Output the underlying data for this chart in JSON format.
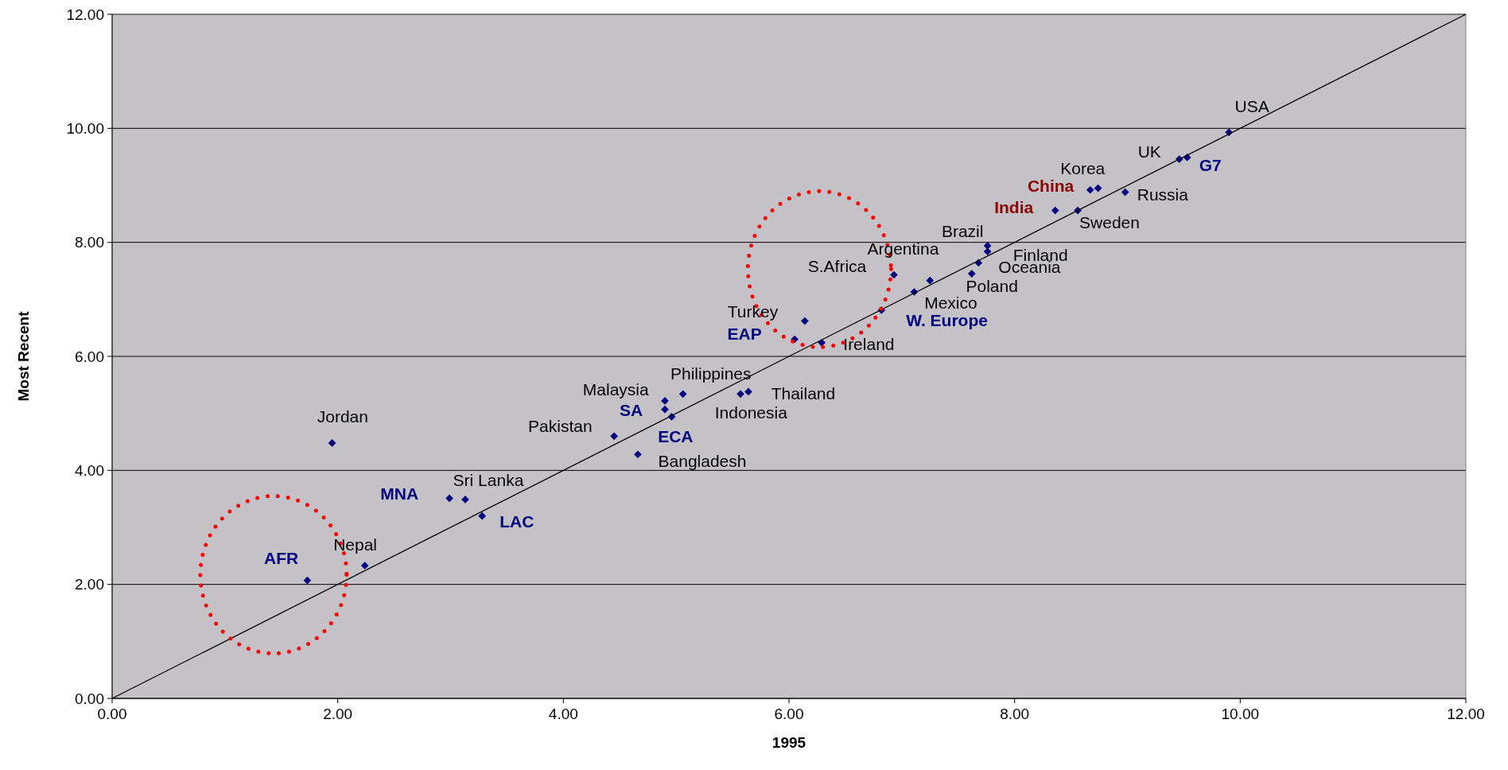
{
  "chart_data": {
    "type": "scatter",
    "xlabel": "1995",
    "ylabel": "Most Recent",
    "xlim": [
      0,
      12
    ],
    "ylim": [
      0,
      12
    ],
    "xticks": [
      {
        "value": 0,
        "label": "0.00"
      },
      {
        "value": 2,
        "label": "2.00"
      },
      {
        "value": 4,
        "label": "4.00"
      },
      {
        "value": 6,
        "label": "6.00"
      },
      {
        "value": 8,
        "label": "8.00"
      },
      {
        "value": 10,
        "label": "10.00"
      },
      {
        "value": 12,
        "label": "12.00"
      }
    ],
    "yticks": [
      {
        "value": 0,
        "label": "0.00"
      },
      {
        "value": 2,
        "label": "2.00"
      },
      {
        "value": 4,
        "label": "4.00"
      },
      {
        "value": 6,
        "label": "6.00"
      },
      {
        "value": 8,
        "label": "8.00"
      },
      {
        "value": 10,
        "label": "10.00"
      },
      {
        "value": 12,
        "label": "12.00"
      }
    ],
    "grid": "y",
    "marker": "diamond",
    "series": [
      {
        "color": "#000080",
        "x": [
          7.68,
          2.24,
          3.13,
          1.95,
          4.45,
          4.66,
          4.9,
          5.06,
          5.57,
          5.64,
          6.14,
          6.29,
          6.93,
          7.11,
          7.25,
          7.62,
          7.76,
          7.76,
          8.56,
          8.74,
          8.98,
          9.46,
          9.9
        ],
        "values": [
          7.64,
          2.33,
          3.49,
          4.48,
          4.6,
          4.28,
          5.22,
          5.34,
          5.34,
          5.38,
          6.62,
          6.24,
          7.43,
          7.13,
          7.33,
          7.45,
          7.84,
          7.94,
          8.56,
          8.95,
          8.88,
          9.46,
          9.93
        ]
      },
      {
        "color": "#000080",
        "x": [
          1.73,
          2.99,
          3.28,
          4.9,
          4.96,
          6.05,
          6.82,
          9.53
        ],
        "values": [
          2.07,
          3.51,
          3.2,
          5.07,
          4.94,
          6.3,
          6.81,
          9.49
        ]
      },
      {
        "color": "#000080",
        "x": [
          8.36,
          8.67
        ],
        "values": [
          8.56,
          8.92
        ]
      },
      {
        "type": "line",
        "color": "#000000",
        "x": [
          0,
          12
        ],
        "values": [
          0,
          12
        ],
        "marker": "none"
      }
    ],
    "annotations": [
      {
        "text": "Nepal",
        "x": 2.24,
        "y": 2.33
      },
      {
        "text": "Sri Lanka",
        "x": 3.13,
        "y": 3.49
      },
      {
        "text": "Jordan",
        "x": 1.95,
        "y": 4.48
      },
      {
        "text": "Pakistan",
        "x": 4.45,
        "y": 4.6
      },
      {
        "text": "Bangladesh",
        "x": 4.66,
        "y": 4.28
      },
      {
        "text": "Malaysia",
        "x": 4.9,
        "y": 5.22
      },
      {
        "text": "Philippines",
        "x": 5.06,
        "y": 5.34
      },
      {
        "text": "Indonesia",
        "x": 5.57,
        "y": 5.34
      },
      {
        "text": "Thailand",
        "x": 5.64,
        "y": 5.38
      },
      {
        "text": "Turkey",
        "x": 6.14,
        "y": 6.62
      },
      {
        "text": "Ireland",
        "x": 6.29,
        "y": 6.24
      },
      {
        "text": "S.Africa",
        "x": 6.93,
        "y": 7.43
      },
      {
        "text": "Mexico",
        "x": 7.11,
        "y": 7.13
      },
      {
        "text": "Argentina",
        "x": 7.25,
        "y": 7.33
      },
      {
        "text": "Poland",
        "x": 7.62,
        "y": 7.45
      },
      {
        "text": "Finland",
        "x": 7.76,
        "y": 7.84
      },
      {
        "text": "Brazil",
        "x": 7.76,
        "y": 7.94
      },
      {
        "text": "Sweden",
        "x": 8.56,
        "y": 8.56
      },
      {
        "text": "Korea",
        "x": 8.74,
        "y": 8.95
      },
      {
        "text": "Russia",
        "x": 8.98,
        "y": 8.88
      },
      {
        "text": "UK",
        "x": 9.46,
        "y": 9.46
      },
      {
        "text": "USA",
        "x": 9.9,
        "y": 9.93
      },
      {
        "text": "AFR",
        "x": 1.73,
        "y": 2.07
      },
      {
        "text": "MNA",
        "x": 2.99,
        "y": 3.51
      },
      {
        "text": "LAC",
        "x": 3.28,
        "y": 3.2
      },
      {
        "text": "SA",
        "x": 4.9,
        "y": 5.07
      },
      {
        "text": "ECA",
        "x": 4.96,
        "y": 4.94
      },
      {
        "text": "EAP",
        "x": 6.05,
        "y": 6.3
      },
      {
        "text": "W. Europe",
        "x": 6.82,
        "y": 6.81
      },
      {
        "text": "Oceania",
        "x": 7.68,
        "y": 7.64
      },
      {
        "text": "G7",
        "x": 9.53,
        "y": 9.49
      },
      {
        "text": "India",
        "x": 8.36,
        "y": 8.56
      },
      {
        "text": "China",
        "x": 8.67,
        "y": 8.92
      }
    ]
  }
}
